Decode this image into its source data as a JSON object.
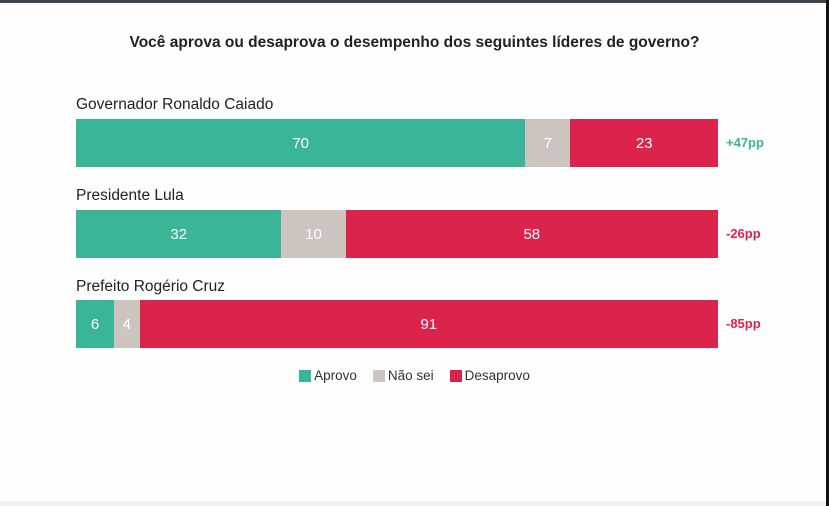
{
  "chart_data": {
    "type": "bar",
    "orientation": "horizontal-stacked-100",
    "title": "Você aprova ou desaprova o desempenho dos seguintes líderes de governo?",
    "categories": [
      "Governador Ronaldo Caiado",
      "Presidente Lula",
      "Prefeito Rogério Cruz"
    ],
    "series": [
      {
        "name": "Aprovo",
        "color": "#3bb597",
        "values": [
          70,
          32,
          6
        ]
      },
      {
        "name": "Não sei",
        "color": "#cdc3bf",
        "values": [
          7,
          10,
          4
        ]
      },
      {
        "name": "Desaprovo",
        "color": "#dc234c",
        "values": [
          23,
          58,
          91
        ]
      }
    ],
    "net_labels": [
      "+47pp",
      "-26pp",
      "-85pp"
    ],
    "net_colors": [
      "#3bb597",
      "#dc234c",
      "#dc234c"
    ],
    "legend_position": "bottom-center",
    "xlim": [
      0,
      100
    ],
    "grid": false
  }
}
